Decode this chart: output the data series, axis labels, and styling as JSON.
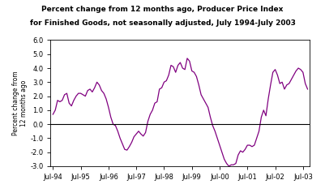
{
  "title_line1": "Percent change from 12 months ago, Producer Price Index",
  "title_line2": "for Finished Goods, not seasonally adjusted, July 1994-July 2003",
  "ylabel": "Percent change from\n12 months ago",
  "line_color": "#800080",
  "bg_color": "#ffffff",
  "ylim": [
    -3.0,
    6.0
  ],
  "yticks": [
    -3.0,
    -2.0,
    -1.0,
    0.0,
    1.0,
    2.0,
    3.0,
    4.0,
    5.0,
    6.0
  ],
  "xtick_labels": [
    "Jul-94",
    "Jul-95",
    "Jul-96",
    "Jul-97",
    "Jul-98",
    "Jul-99",
    "Jul-00",
    "Jul-01",
    "Jul-02",
    "Jul-03"
  ],
  "values": [
    0.7,
    1.0,
    1.7,
    1.6,
    1.7,
    2.1,
    2.2,
    1.5,
    1.3,
    1.7,
    2.0,
    2.2,
    2.2,
    2.1,
    2.0,
    2.4,
    2.5,
    2.3,
    2.6,
    3.0,
    2.8,
    2.4,
    2.2,
    1.8,
    1.2,
    0.5,
    0.0,
    -0.1,
    -0.5,
    -1.0,
    -1.4,
    -1.8,
    -1.85,
    -1.6,
    -1.3,
    -0.9,
    -0.7,
    -0.5,
    -0.7,
    -0.85,
    -0.6,
    0.2,
    0.7,
    1.0,
    1.5,
    1.6,
    2.5,
    2.6,
    3.0,
    3.1,
    3.5,
    4.2,
    4.1,
    3.7,
    4.2,
    4.4,
    4.0,
    3.9,
    4.7,
    4.5,
    3.8,
    3.7,
    3.4,
    2.8,
    2.1,
    1.8,
    1.5,
    1.2,
    0.5,
    -0.1,
    -0.5,
    -1.0,
    -1.5,
    -2.0,
    -2.5,
    -2.8,
    -3.0,
    -2.9,
    -2.9,
    -2.8,
    -2.2,
    -1.9,
    -2.0,
    -1.8,
    -1.5,
    -1.5,
    -1.6,
    -1.5,
    -1.0,
    -0.5,
    0.5,
    1.0,
    0.6,
    1.8,
    2.8,
    3.7,
    3.9,
    3.5,
    2.9,
    3.0,
    2.5,
    2.8,
    2.9,
    3.2,
    3.5,
    3.8,
    4.0,
    3.9,
    3.7,
    2.9,
    2.5
  ]
}
